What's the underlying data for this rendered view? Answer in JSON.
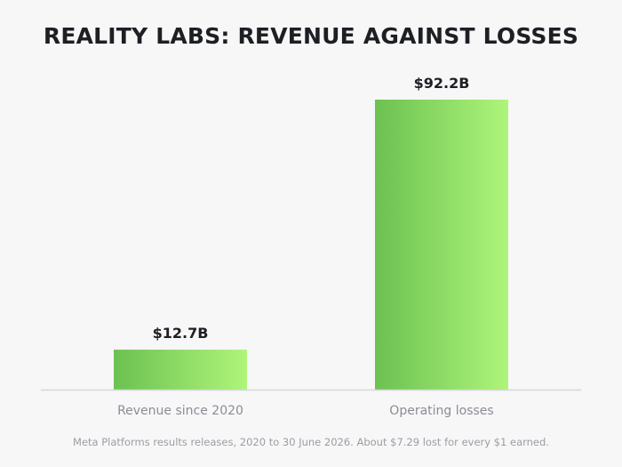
{
  "chart_data": {
    "type": "bar",
    "title": "REALITY LABS: REVENUE AGAINST LOSSES",
    "categories": [
      "Revenue since 2020",
      "Operating losses"
    ],
    "values": [
      12.7,
      92.2
    ],
    "value_labels": [
      "$12.7B",
      "$92.2B"
    ],
    "unit": "billion USD",
    "grid": false,
    "legend": "none",
    "ylim": [
      0,
      92.2
    ],
    "colors": {
      "bar_gradient_start": "#6cc151",
      "bar_gradient_end": "#aef57a",
      "baseline": "#d6d7da"
    },
    "footnote": "Meta Platforms results releases, 2020 to 30 June 2026. About $7.29 lost for every $1 earned."
  }
}
